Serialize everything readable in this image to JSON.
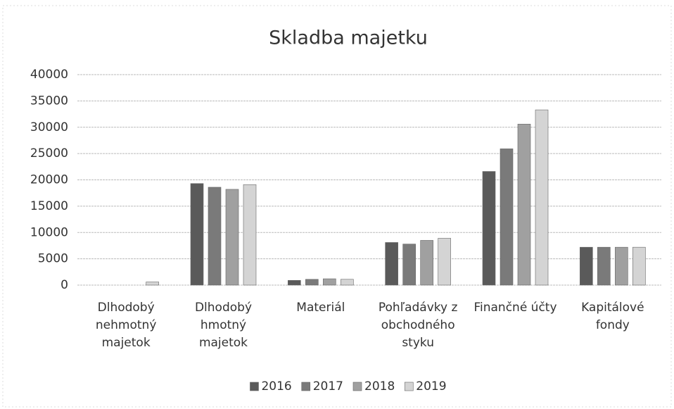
{
  "chart_data": {
    "type": "bar",
    "title": "Skladba majetku",
    "categories": [
      "Dlhodobý nehmotný majetok",
      "Dlhodobý hmotný majetok",
      "Materiál",
      "Pohľadávky z obchodného styku",
      "Finančné účty",
      "Kapitálové fondy"
    ],
    "series": [
      {
        "name": "2016",
        "color": "#5a5a5a",
        "values": [
          0,
          19300,
          900,
          8100,
          21600,
          7200
        ]
      },
      {
        "name": "2017",
        "color": "#7a7a7a",
        "values": [
          0,
          18600,
          1100,
          7800,
          25900,
          7200
        ]
      },
      {
        "name": "2018",
        "color": "#a0a0a0",
        "values": [
          0,
          18200,
          1200,
          8500,
          30600,
          7200
        ]
      },
      {
        "name": "2019",
        "color": "#d4d4d4",
        "values": [
          600,
          19100,
          1100,
          8900,
          33300,
          7200
        ]
      }
    ],
    "ylim": [
      0,
      40000
    ],
    "yticks": [
      0,
      5000,
      10000,
      15000,
      20000,
      25000,
      30000,
      35000,
      40000
    ],
    "grid": true,
    "legend": "bottom"
  }
}
